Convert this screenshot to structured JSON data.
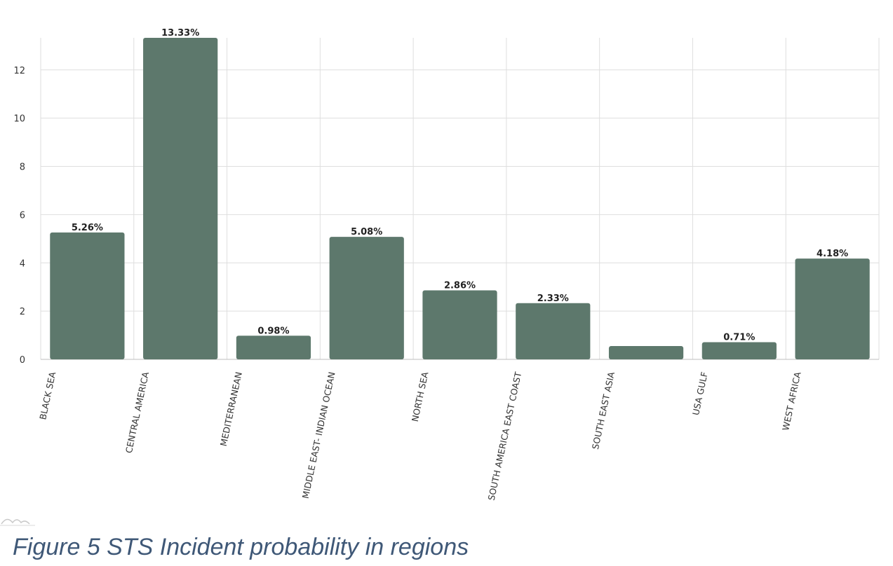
{
  "caption": "Figure 5 STS Incident probability in regions",
  "colors": {
    "bar": "#5d786c",
    "grid": "#dedede"
  },
  "chart_data": {
    "type": "bar",
    "title": "",
    "xlabel": "",
    "ylabel": "",
    "ylim": [
      0,
      13.33
    ],
    "yticks": [
      0,
      2,
      4,
      6,
      8,
      10,
      12
    ],
    "grid": true,
    "categories": [
      "BLACK SEA",
      "CENTRAL AMERICA",
      "MEDITERRANEAN",
      "MIDDLE EAST- INDIAN OCEAN",
      "NORTH SEA",
      "SOUTH AMERICA EAST COAST",
      "SOUTH EAST ASIA",
      "USA GULF",
      "WEST AFRICA"
    ],
    "values": [
      5.26,
      13.33,
      0.98,
      5.08,
      2.86,
      2.33,
      0.55,
      0.71,
      4.18
    ],
    "data_labels": [
      "5.26%",
      "13.33%",
      "0.98%",
      "5.08%",
      "2.86%",
      "2.33%",
      "",
      "0.71%",
      "4.18%"
    ]
  }
}
